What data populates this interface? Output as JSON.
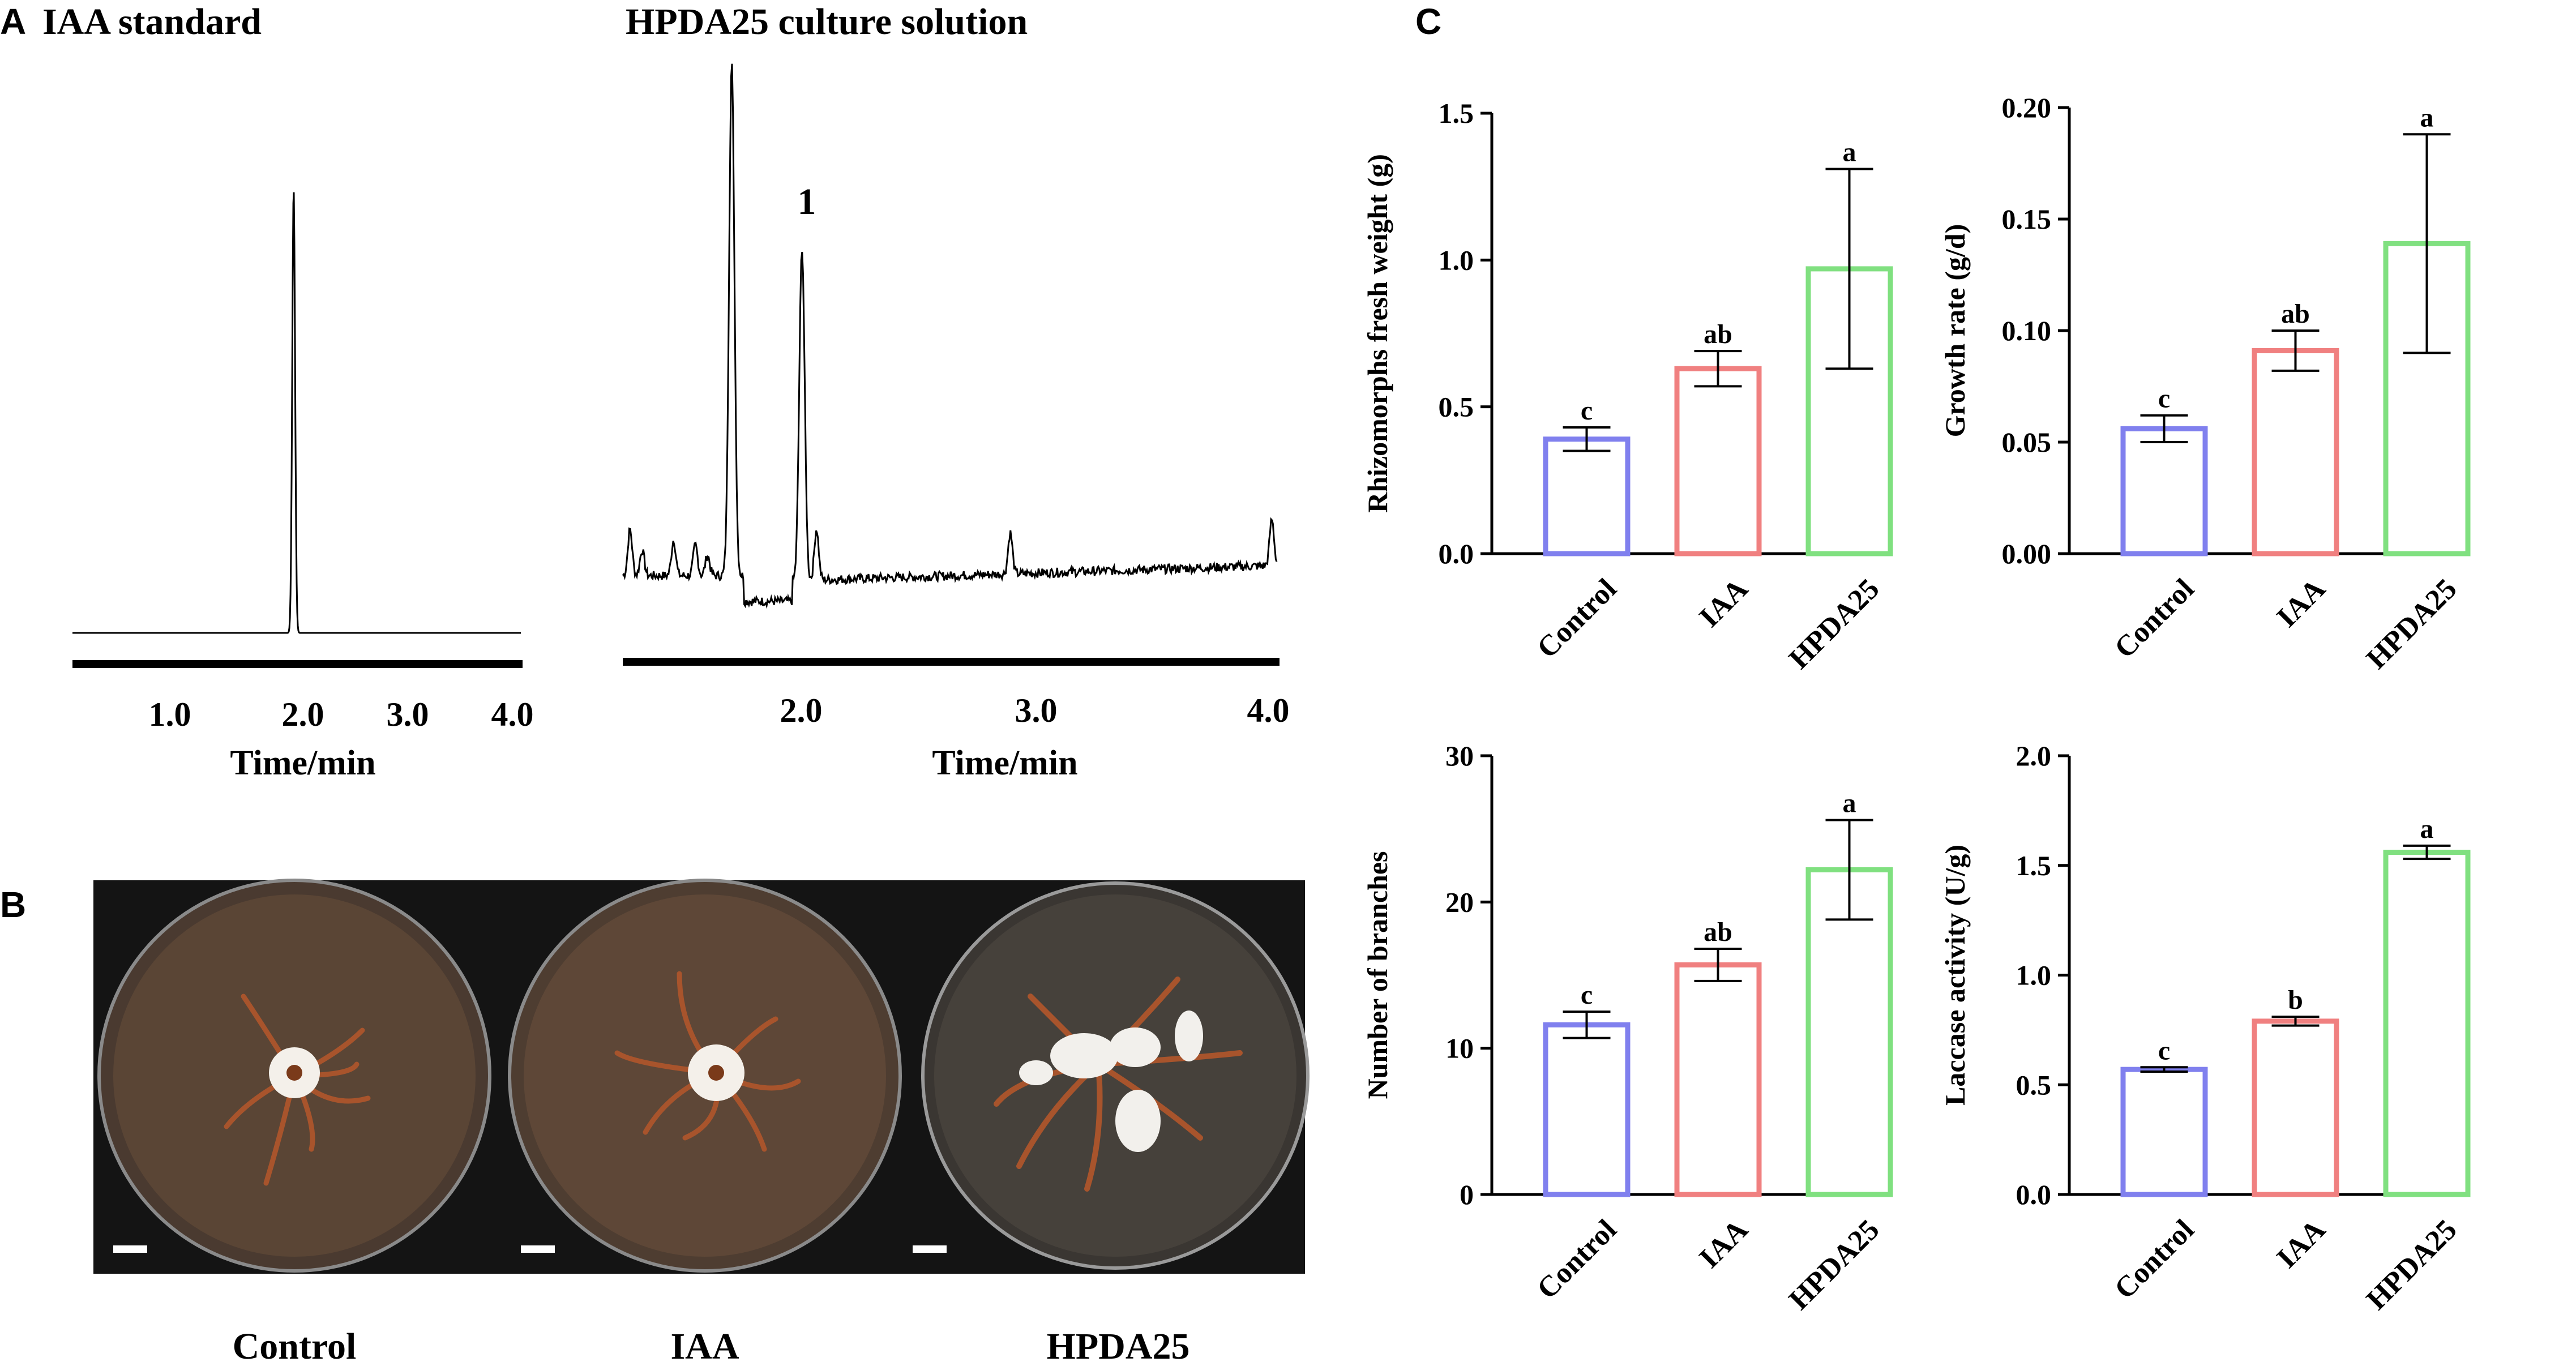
{
  "panel_a": {
    "letter": "A",
    "left_title": "IAA standard",
    "right_title": "HPDA25 culture solution",
    "left_ticks": [
      "1.0",
      "2.0",
      "3.0",
      "4.0"
    ],
    "right_ticks": [
      "2.0",
      "3.0",
      "4.0"
    ],
    "xlabel": "Time/min",
    "peak_label": "1"
  },
  "panel_b": {
    "letter": "B",
    "plates": [
      {
        "label": "Control",
        "dish": "#4a3a30",
        "media": "#5a4535"
      },
      {
        "label": "IAA",
        "dish": "#4e3d31",
        "media": "#5e4737"
      },
      {
        "label": "HPDA25",
        "dish": "#3a3632",
        "media": "#46413b"
      }
    ]
  },
  "panel_c": {
    "letter": "C"
  },
  "chart_data": [
    {
      "type": "line",
      "title": "IAA standard",
      "xlabel": "Time/min",
      "ylabel": "",
      "xlim": [
        0.25,
        4.0
      ],
      "x_ticks": [
        1.0,
        2.0,
        3.0,
        4.0
      ],
      "peaks": [
        {
          "x": 2.1,
          "height": 1.0
        }
      ]
    },
    {
      "type": "line",
      "title": "HPDA25 culture solution",
      "xlabel": "Time/min",
      "ylabel": "",
      "xlim": [
        1.3,
        4.0
      ],
      "x_ticks": [
        2.0,
        3.0,
        4.0
      ],
      "peaks": [
        {
          "x": 1.75,
          "height": 1.0
        },
        {
          "x": 2.04,
          "height": 0.65,
          "label": "1"
        }
      ]
    },
    {
      "type": "bar",
      "categories": [
        "Control",
        "IAA",
        "HPDA25"
      ],
      "values": [
        0.39,
        0.63,
        0.97
      ],
      "errors": [
        0.04,
        0.06,
        0.34
      ],
      "significance": [
        "c",
        "ab",
        "a"
      ],
      "colors": [
        "#8080ee",
        "#f08080",
        "#80e080"
      ],
      "ylabel": "Rhizomorphs fresh weight (g)",
      "ylim": [
        0,
        1.5
      ],
      "y_ticks": [
        "0.0",
        "0.5",
        "1.0",
        "1.5"
      ]
    },
    {
      "type": "bar",
      "categories": [
        "Control",
        "IAA",
        "HPDA25"
      ],
      "values": [
        0.056,
        0.091,
        0.139
      ],
      "errors": [
        0.006,
        0.009,
        0.049
      ],
      "significance": [
        "c",
        "ab",
        "a"
      ],
      "colors": [
        "#8080ee",
        "#f08080",
        "#80e080"
      ],
      "ylabel": "Growth  rate (g/d)",
      "ylim": [
        0,
        0.2
      ],
      "y_ticks": [
        "0.00",
        "0.05",
        "0.10",
        "0.15",
        "0.20"
      ]
    },
    {
      "type": "bar",
      "categories": [
        "Control",
        "IAA",
        "HPDA25"
      ],
      "values": [
        11.6,
        15.7,
        22.2
      ],
      "errors": [
        0.9,
        1.1,
        3.4
      ],
      "significance": [
        "c",
        "ab",
        "a"
      ],
      "colors": [
        "#8080ee",
        "#f08080",
        "#80e080"
      ],
      "ylabel": "Number of branches",
      "ylim": [
        0,
        30
      ],
      "y_ticks": [
        "0",
        "10",
        "20",
        "30"
      ]
    },
    {
      "type": "bar",
      "categories": [
        "Control",
        "IAA",
        "HPDA25"
      ],
      "values": [
        0.57,
        0.79,
        1.56
      ],
      "errors": [
        0.01,
        0.02,
        0.03
      ],
      "significance": [
        "c",
        "b",
        "a"
      ],
      "colors": [
        "#8080ee",
        "#f08080",
        "#80e080"
      ],
      "ylabel": "Laccase activity (U/g)",
      "ylim": [
        0,
        2.0
      ],
      "y_ticks": [
        "0.0",
        "0.5",
        "1.0",
        "1.5",
        "2.0"
      ]
    }
  ]
}
